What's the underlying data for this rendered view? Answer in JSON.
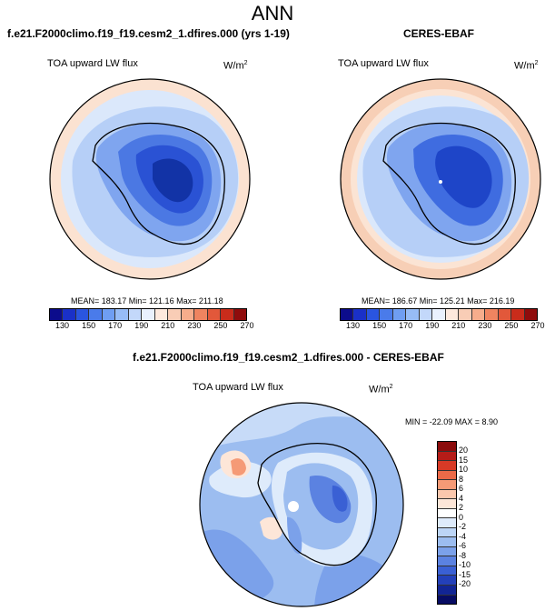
{
  "page": {
    "title": "ANN"
  },
  "panels": {
    "model": {
      "title": "f.e21.F2000climo.f19_f19.cesm2_1.dfires.000 (yrs 1-19)",
      "variable": "TOA upward LW flux",
      "units": "W/m",
      "units_sup": "2",
      "stats": "MEAN= 183.17  Min= 121.16  Max= 211.18"
    },
    "obs": {
      "title": "CERES-EBAF",
      "variable": "TOA upward LW flux",
      "units": "W/m",
      "units_sup": "2",
      "stats": "MEAN= 186.67  Min= 125.21  Max= 216.19"
    },
    "diff": {
      "title": "f.e21.F2000climo.f19_f19.cesm2_1.dfires.000 - CERES-EBAF",
      "variable": "TOA upward LW flux",
      "units": "W/m",
      "units_sup": "2",
      "stats": "MIN = -22.09 MAX =   8.90"
    }
  },
  "colorbar_abs": {
    "colors": [
      "#0c0c8c",
      "#1a30c8",
      "#2a55e0",
      "#4a7bea",
      "#6f9ef2",
      "#97bcf6",
      "#c3d8fa",
      "#e9f1fd",
      "#fde9dd",
      "#f9cdb6",
      "#f6ad8c",
      "#ef8460",
      "#e2583a",
      "#c92c1b",
      "#8f0c0c"
    ],
    "labels": [
      "130",
      "150",
      "170",
      "190",
      "210",
      "230",
      "250",
      "270"
    ]
  },
  "colorbar_diff": {
    "colors": [
      "#8b0c0c",
      "#b51c18",
      "#d73a26",
      "#ec6a48",
      "#f59a76",
      "#fac7ad",
      "#fde6d8",
      "#ffffff",
      "#deebfb",
      "#bcd5f6",
      "#9cbdf0",
      "#7ba1ea",
      "#5b82e1",
      "#3a60d4",
      "#2340b9",
      "#122594",
      "#070c63"
    ],
    "labels": [
      "20",
      "15",
      "10",
      "8",
      "6",
      "4",
      "2",
      "0",
      "-2",
      "-4",
      "-6",
      "-8",
      "-10",
      "-15",
      "-20"
    ]
  }
}
